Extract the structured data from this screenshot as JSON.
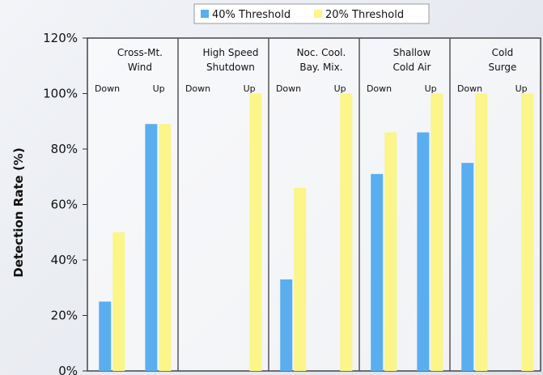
{
  "chart_data": {
    "type": "bar",
    "ylabel": "Detection Rate (%)",
    "ylim": [
      0,
      120
    ],
    "yticks": [
      "0%",
      "20%",
      "40%",
      "60%",
      "80%",
      "100%",
      "120%"
    ],
    "legend_placement": "top",
    "legend": [
      {
        "name": "40% Threshold",
        "color": "#5aaef0"
      },
      {
        "name": "20% Threshold",
        "color": "#fbf58a"
      }
    ],
    "groups": [
      {
        "title": [
          "Cross-Mt.",
          "Wind"
        ],
        "down_label": "Down",
        "up_label": "Up",
        "values": {
          "40% Threshold": [
            25,
            89
          ],
          "20% Threshold": [
            50,
            89
          ]
        }
      },
      {
        "title": [
          "High Speed",
          "Shutdown"
        ],
        "down_label": "Down",
        "up_label": "Up",
        "values": {
          "40% Threshold": [
            0,
            0
          ],
          "20% Threshold": [
            0,
            100
          ]
        }
      },
      {
        "title": [
          "Noc. Cool.",
          "Bay. Mix."
        ],
        "down_label": "Down",
        "up_label": "Up",
        "values": {
          "40% Threshold": [
            33,
            0
          ],
          "20% Threshold": [
            66,
            100
          ]
        }
      },
      {
        "title": [
          "Shallow",
          "Cold Air"
        ],
        "down_label": "Down",
        "up_label": "Up",
        "values": {
          "40% Threshold": [
            71,
            86
          ],
          "20% Threshold": [
            86,
            100
          ]
        }
      },
      {
        "title": [
          "Cold",
          "Surge"
        ],
        "down_label": "Down",
        "up_label": "Up",
        "values": {
          "40% Threshold": [
            75,
            0
          ],
          "20% Threshold": [
            100,
            100
          ]
        }
      }
    ]
  }
}
